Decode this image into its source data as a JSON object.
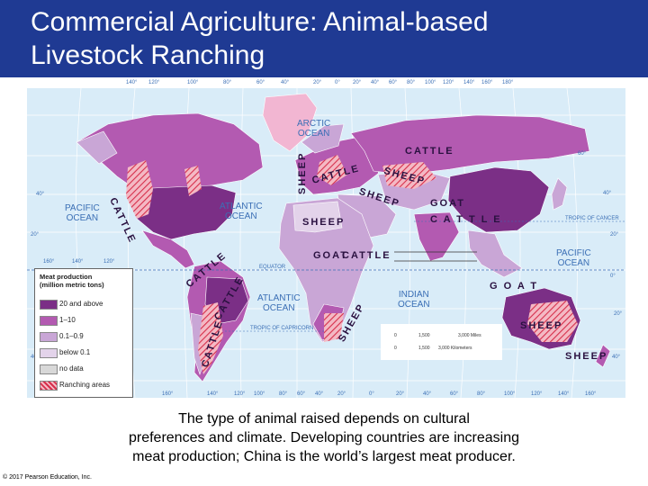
{
  "title_line1": "Commercial Agriculture: Animal-based",
  "title_line2": "Livestock Ranching",
  "caption_line1": "The type of animal raised depends on cultural",
  "caption_line2": "preferences and climate. Developing countries are increasing",
  "caption_line3": "meat production; China is the world’s largest meat producer.",
  "copyright": "© 2017 Pearson Education, Inc.",
  "oceans": {
    "arctic": "ARCTIC\nOCEAN",
    "pacific_w": "PACIFIC\nOCEAN",
    "atlantic_n": "ATLANTIC\nOCEAN",
    "atlantic_s": "ATLANTIC\nOCEAN",
    "indian": "INDIAN\nOCEAN",
    "pacific_e": "PACIFIC\nOCEAN"
  },
  "map_lines": {
    "equator": "EQUATOR",
    "cancer": "TROPIC OF CANCER",
    "capricorn": "TROPIC OF CAPRICORN"
  },
  "animals": {
    "cattle_na": "CATTLE",
    "cattle_asia": "CATTLE",
    "sheep_eur": "SHEEP",
    "cattle_eur": "CATTLE",
    "sheep_mid": "SHEEP",
    "sheep_centralasia": "SHEEP",
    "goat_asia": "GOAT",
    "cattle_india": "C A T T L E",
    "sheep_africa": "SHEEP",
    "goat_africa": "GOAT",
    "cattle_africa": "CATTLE",
    "cattle_sa": "CATTLE",
    "cattle_sa2": "CATTLE",
    "cattle_sa3": "CATTLE",
    "goat_ocean": "G O A T",
    "sheep_aus": "SHEEP",
    "sheep_nz": "SHEEP",
    "sheep_safrica": "SHEEP"
  },
  "ticks": {
    "top": [
      "140°",
      "120°",
      "100°",
      "80°",
      "60°",
      "40°",
      "20°",
      "0°",
      "20°",
      "40°",
      "60°",
      "80°",
      "100°",
      "120°",
      "140°",
      "160°",
      "180°"
    ],
    "bottom": [
      "160°",
      "140°",
      "120°",
      "100°",
      "80°",
      "60°",
      "40°",
      "20°",
      "0°",
      "20°",
      "40°",
      "60°",
      "80°",
      "100°",
      "120°",
      "140°",
      "160°"
    ],
    "left": [
      "40°",
      "20°",
      "40°"
    ],
    "right": [
      "60°",
      "40°",
      "20°",
      "0°",
      "20°",
      "40°"
    ],
    "legend_top": [
      "160°",
      "140°",
      "120°"
    ]
  },
  "legend": {
    "title_line1": "Meat production",
    "title_line2": "(million metric tons)",
    "items": [
      {
        "label": "20 and above",
        "color": "#7b2f86"
      },
      {
        "label": "1–10",
        "color": "#b35ab1"
      },
      {
        "label": "0.1–0.9",
        "color": "#c9a6d6"
      },
      {
        "label": "below 0.1",
        "color": "#e3d3ea"
      },
      {
        "label": "no data",
        "color": "#d8d8d8"
      },
      {
        "label": "Ranching areas",
        "color": "#e05c6c"
      }
    ]
  },
  "scale": {
    "r1_0": "0",
    "r1_1500": "1,500",
    "r1_3000": "3,000 Miles",
    "r2_0": "0",
    "r2_1500": "1,500",
    "r2_3000": "3,000 Kilometers"
  },
  "colors": {
    "title_bar": "#1f3a93",
    "ocean": "#d9ecf8",
    "dark": "#7b2f86",
    "mid": "#b35ab1",
    "light": "#c9a6d6",
    "pale": "#e3d3ea",
    "nodata": "#d8d8d8",
    "ranch": "#e05c6c"
  }
}
